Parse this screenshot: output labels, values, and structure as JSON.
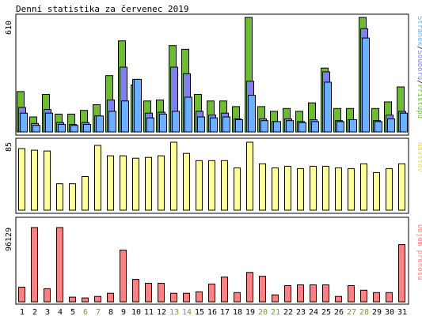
{
  "title": "Denní statistika za červenec 2019",
  "colors": {
    "border": "#000000",
    "grid": "#c8c8c8",
    "access": "#6dbb2f",
    "files": "#8080f0",
    "pages": "#66b3ff",
    "visits": "#ffff99",
    "traffic": "#ff8080",
    "weekend": "#66aa22"
  },
  "days": [
    "1",
    "2",
    "3",
    "4",
    "5",
    "6",
    "7",
    "8",
    "9",
    "10",
    "11",
    "12",
    "13",
    "14",
    "15",
    "16",
    "17",
    "18",
    "19",
    "20",
    "21",
    "22",
    "23",
    "24",
    "25",
    "26",
    "27",
    "28",
    "29",
    "30",
    "31"
  ],
  "weekend_days": [
    "6",
    "7",
    "13",
    "14",
    "20",
    "21",
    "27",
    "28"
  ],
  "panel_top": {
    "max_label": "610",
    "legend": [
      {
        "text": "Stránek",
        "color": "#66b3ff"
      },
      {
        "text": "/",
        "color": "#000000"
      },
      {
        "text": "Souborů",
        "color": "#8080f0"
      },
      {
        "text": "/",
        "color": "#000000"
      },
      {
        "text": "Přístupů",
        "color": "#6dbb2f"
      }
    ],
    "ymax": 610,
    "series": [
      {
        "name": "Přístupů",
        "values": [
          215,
          80,
          200,
          95,
          95,
          115,
          145,
          300,
          485,
          250,
          165,
          170,
          460,
          440,
          200,
          165,
          165,
          135,
          610,
          135,
          110,
          125,
          110,
          155,
          340,
          125,
          125,
          610,
          125,
          160,
          240
        ]
      },
      {
        "name": "Souborů",
        "values": [
          130,
          45,
          120,
          50,
          40,
          50,
          85,
          170,
          345,
          280,
          100,
          105,
          345,
          310,
          110,
          90,
          100,
          70,
          270,
          70,
          55,
          70,
          55,
          65,
          320,
          60,
          65,
          550,
          60,
          90,
          110
        ]
      },
      {
        "name": "Stránek",
        "values": [
          100,
          35,
          100,
          40,
          35,
          40,
          85,
          110,
          165,
          280,
          75,
          95,
          110,
          185,
          80,
          75,
          80,
          65,
          195,
          60,
          55,
          60,
          50,
          55,
          265,
          55,
          65,
          500,
          55,
          70,
          100
        ]
      }
    ]
  },
  "panel_mid": {
    "max_label": "85",
    "legend": [
      {
        "text": "Návštěv",
        "color": "#e0e060"
      }
    ],
    "ymax": 85,
    "values": [
      77,
      75,
      74,
      33,
      33,
      42,
      81,
      68,
      68,
      65,
      66,
      68,
      85,
      71,
      62,
      62,
      62,
      53,
      85,
      58,
      53,
      55,
      52,
      55,
      55,
      53,
      52,
      58,
      47,
      52,
      58
    ]
  },
  "panel_bot": {
    "max_label": "96129",
    "legend": [
      {
        "text": "Objem přenosu",
        "color": "#ff8080"
      }
    ],
    "ymax": 96129,
    "values": [
      19000,
      96129,
      17000,
      96129,
      6000,
      5000,
      7000,
      11000,
      67000,
      29000,
      24000,
      24000,
      11000,
      11000,
      13000,
      23000,
      32000,
      12000,
      38000,
      33000,
      9000,
      21000,
      22000,
      22000,
      22000,
      7000,
      21000,
      15000,
      12000,
      12000,
      74000
    ]
  }
}
